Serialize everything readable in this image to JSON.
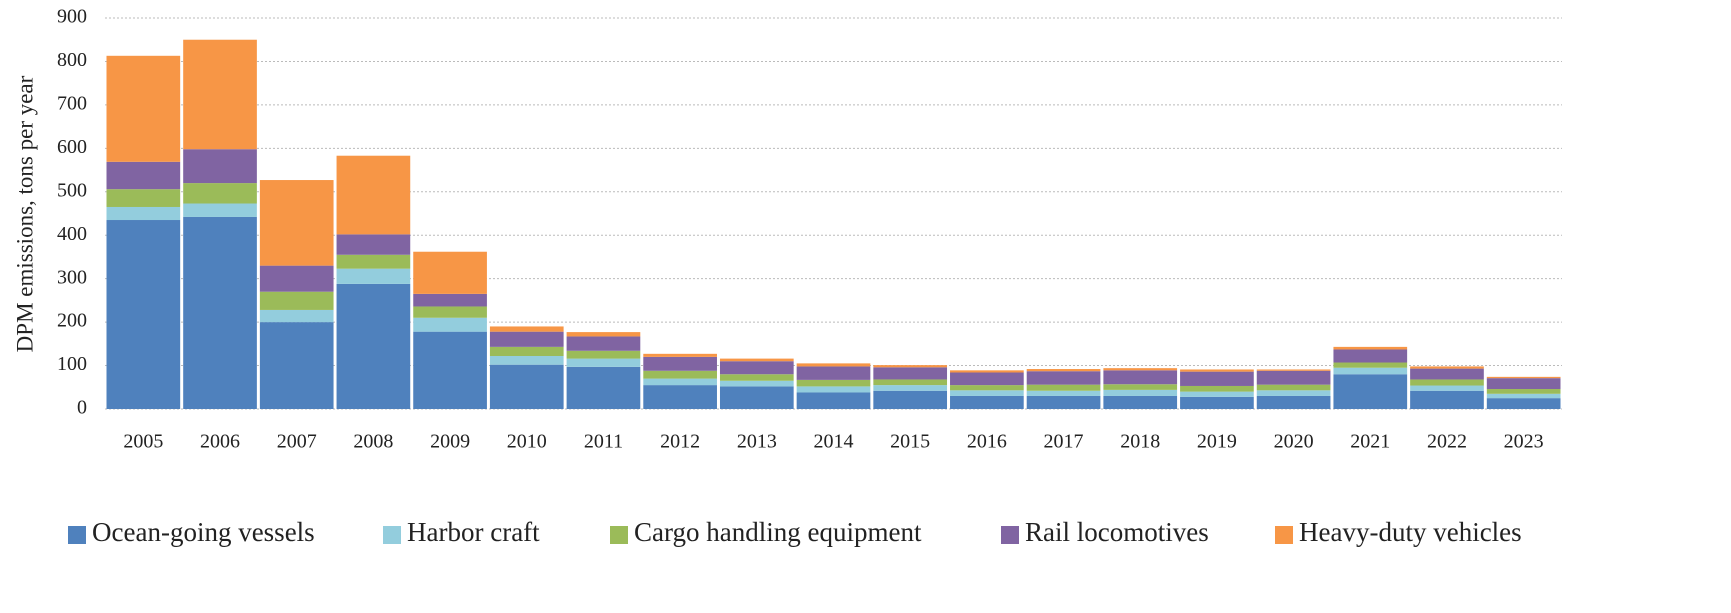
{
  "chart_data": {
    "type": "stacked_bar",
    "y_label": "DPM emissions, tons per year",
    "categories": [
      "2005",
      "2006",
      "2007",
      "2008",
      "2009",
      "2010",
      "2011",
      "2012",
      "2013",
      "2014",
      "2015",
      "2016",
      "2017",
      "2018",
      "2019",
      "2020",
      "2021",
      "2022",
      "2023"
    ],
    "series": [
      {
        "name": "Ocean-going vessels",
        "color": "#4f81bd",
        "values": [
          435,
          442,
          200,
          288,
          178,
          102,
          97,
          55,
          52,
          38,
          42,
          30,
          30,
          30,
          28,
          30,
          80,
          42,
          25
        ]
      },
      {
        "name": "Harbor craft",
        "color": "#93cddd",
        "values": [
          30,
          31,
          28,
          35,
          32,
          20,
          19,
          15,
          13,
          14,
          13,
          13,
          12,
          14,
          12,
          13,
          15,
          12,
          10
        ]
      },
      {
        "name": "Cargo handling equipment",
        "color": "#9bbb59",
        "values": [
          41,
          47,
          42,
          32,
          26,
          21,
          18,
          18,
          15,
          15,
          13,
          12,
          14,
          13,
          13,
          13,
          12,
          14,
          11
        ]
      },
      {
        "name": "Rail locomotives",
        "color": "#8064a2",
        "values": [
          63,
          78,
          60,
          47,
          29,
          35,
          33,
          32,
          30,
          31,
          28,
          29,
          31,
          32,
          33,
          32,
          30,
          25,
          25
        ]
      },
      {
        "name": "Heavy-duty vehicles",
        "color": "#f79646",
        "values": [
          244,
          252,
          197,
          181,
          97,
          12,
          10,
          7,
          6,
          7,
          5,
          5,
          5,
          5,
          5,
          3,
          6,
          5,
          3
        ]
      }
    ],
    "ylim": [
      0,
      900
    ],
    "yticks": [
      0,
      100,
      200,
      300,
      400,
      500,
      600,
      700,
      800,
      900
    ],
    "grid": true,
    "legend": "bottom"
  }
}
